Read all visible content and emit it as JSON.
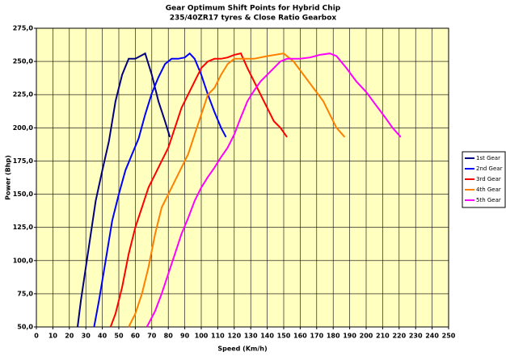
{
  "chart_data": {
    "type": "line",
    "title": "Gear Optimum Shift Points for Hybrid Chip",
    "subtitle": "235/40ZR17 tyres & Close Ratio Gearbox",
    "x_label": "Speed (Km/h)",
    "y_label": "Power (Bhp)",
    "xlim": [
      0,
      250
    ],
    "ylim": [
      50,
      275
    ],
    "xticks": [
      0,
      10,
      20,
      30,
      40,
      50,
      60,
      70,
      80,
      90,
      100,
      110,
      120,
      130,
      140,
      150,
      160,
      170,
      180,
      190,
      200,
      210,
      220,
      230,
      240,
      250
    ],
    "yticks": [
      {
        "value": 50,
        "label": "50,0"
      },
      {
        "value": 75,
        "label": "75,0"
      },
      {
        "value": 100,
        "label": "100,0"
      },
      {
        "value": 125,
        "label": "125,0"
      },
      {
        "value": 150,
        "label": "150,0"
      },
      {
        "value": 175,
        "label": "175,0"
      },
      {
        "value": 200,
        "label": "200,0"
      },
      {
        "value": 225,
        "label": "225,0"
      },
      {
        "value": 250,
        "label": "250,0"
      },
      {
        "value": 275,
        "label": "275,0"
      }
    ],
    "grid": true,
    "legend": "right",
    "series": [
      {
        "name": "1st Gear",
        "color": "#000080",
        "x": [
          25,
          27,
          30,
          33,
          36,
          40,
          44,
          48,
          52,
          56,
          60,
          63,
          66,
          70,
          74,
          78,
          81
        ],
        "values": [
          50,
          70,
          95,
          120,
          145,
          168,
          190,
          220,
          240,
          252,
          252,
          254,
          256,
          240,
          220,
          205,
          193
        ]
      },
      {
        "name": "2nd Gear",
        "color": "#0000ff",
        "x": [
          35,
          38,
          42,
          46,
          50,
          54,
          58,
          62,
          66,
          70,
          74,
          78,
          82,
          86,
          90,
          93,
          96,
          100,
          104,
          108,
          112,
          115
        ],
        "values": [
          50,
          70,
          100,
          130,
          150,
          168,
          180,
          192,
          210,
          226,
          238,
          248,
          252,
          252,
          253,
          256,
          252,
          240,
          225,
          212,
          200,
          193
        ]
      },
      {
        "name": "3rd Gear",
        "color": "#ff0000",
        "x": [
          45,
          48,
          52,
          56,
          60,
          64,
          68,
          72,
          76,
          80,
          84,
          88,
          92,
          96,
          100,
          104,
          108,
          112,
          116,
          120,
          124,
          128,
          132,
          136,
          140,
          144,
          148,
          152
        ],
        "values": [
          50,
          60,
          80,
          105,
          125,
          140,
          155,
          165,
          175,
          185,
          200,
          215,
          225,
          235,
          245,
          250,
          252,
          252,
          253,
          255,
          256,
          245,
          235,
          225,
          215,
          205,
          200,
          193
        ]
      },
      {
        "name": "4th Gear",
        "color": "#ff8000",
        "x": [
          56,
          60,
          64,
          68,
          72,
          76,
          80,
          84,
          88,
          92,
          96,
          100,
          104,
          108,
          112,
          116,
          120,
          126,
          132,
          140,
          150,
          156,
          162,
          168,
          174,
          178,
          182,
          187
        ],
        "values": [
          50,
          60,
          75,
          95,
          120,
          140,
          150,
          160,
          170,
          180,
          195,
          210,
          225,
          230,
          240,
          248,
          252,
          252,
          252,
          254,
          256,
          250,
          240,
          230,
          220,
          210,
          200,
          193
        ]
      },
      {
        "name": "5th Gear",
        "color": "#ff00ff",
        "x": [
          67,
          72,
          76,
          80,
          84,
          88,
          92,
          96,
          100,
          104,
          108,
          112,
          116,
          120,
          124,
          128,
          132,
          136,
          140,
          144,
          148,
          152,
          156,
          160,
          166,
          172,
          178,
          182,
          188,
          194,
          200,
          206,
          212,
          216,
          221
        ],
        "values": [
          50,
          62,
          75,
          90,
          105,
          120,
          132,
          145,
          155,
          163,
          170,
          178,
          185,
          195,
          208,
          220,
          228,
          235,
          240,
          245,
          250,
          252,
          252,
          252,
          253,
          255,
          256,
          254,
          245,
          235,
          227,
          217,
          207,
          200,
          193
        ]
      }
    ]
  }
}
